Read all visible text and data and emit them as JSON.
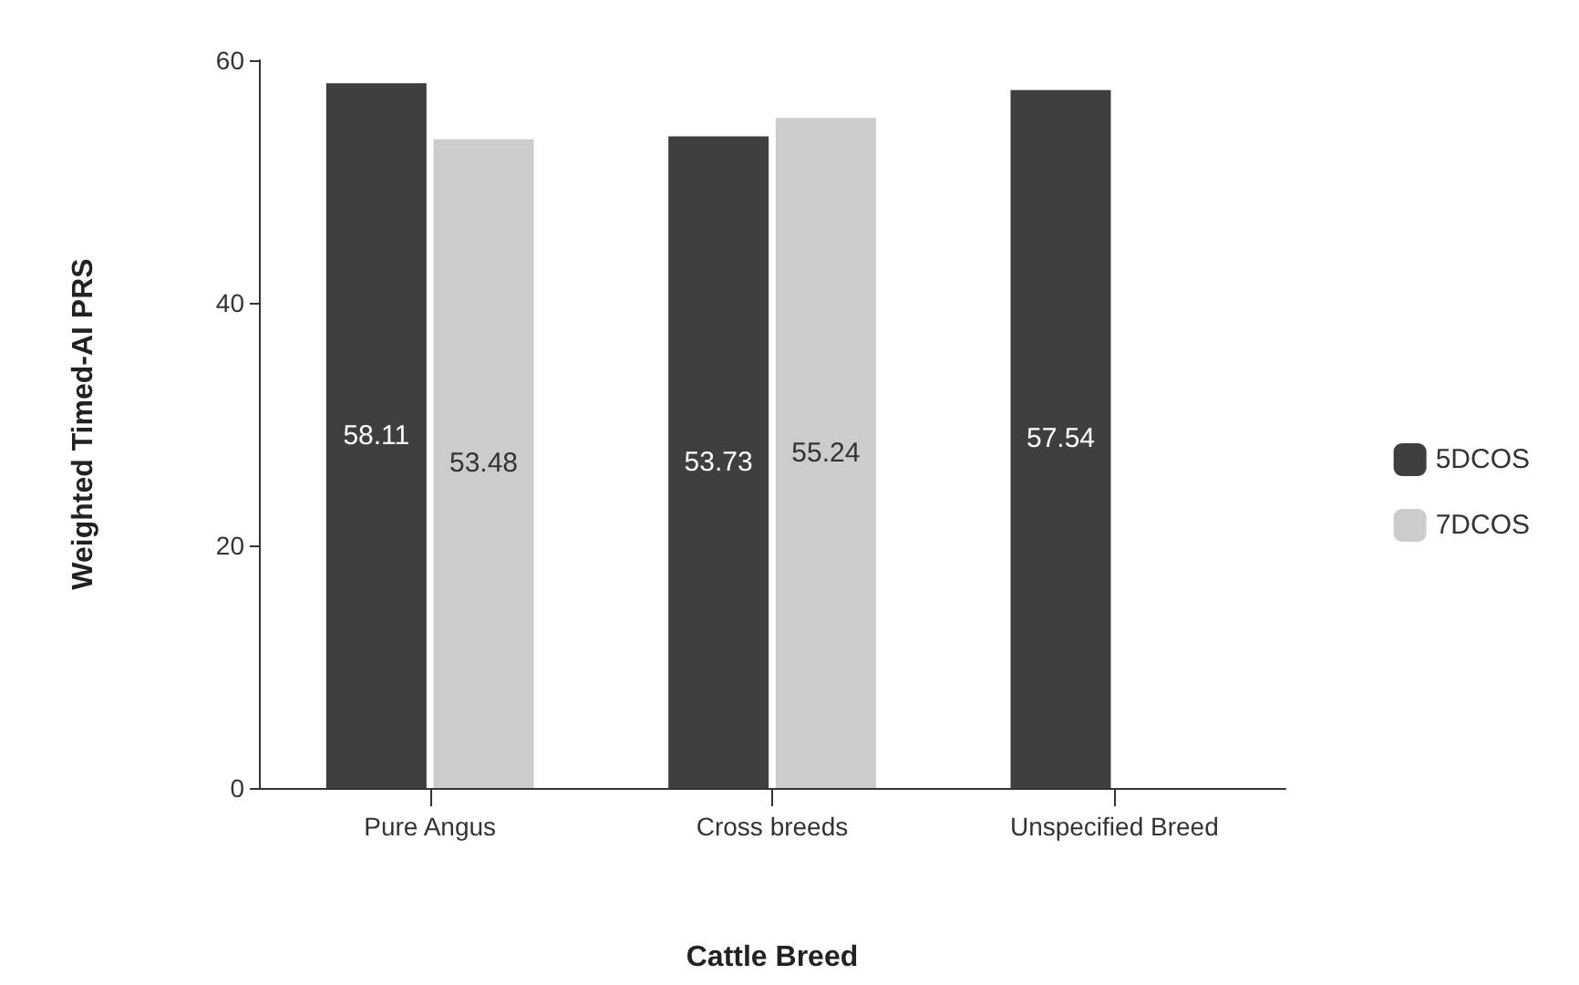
{
  "chart_data": {
    "type": "bar",
    "xlabel": "Cattle Breed",
    "ylabel": "Weighted Timed-AI PRS",
    "categories": [
      "Pure Angus",
      "Cross breeds",
      "Unspecified Breed"
    ],
    "series": [
      {
        "name": "5DCOS",
        "color": "#3f3f3f",
        "values": [
          58.11,
          53.73,
          57.54
        ]
      },
      {
        "name": "7DCOS",
        "color": "#cccccc",
        "values": [
          53.48,
          55.24,
          null
        ]
      }
    ],
    "ylim": [
      0,
      60
    ],
    "yticks": [
      0,
      20,
      40,
      60
    ],
    "grid": false,
    "legend": "right",
    "data_labels": true
  }
}
